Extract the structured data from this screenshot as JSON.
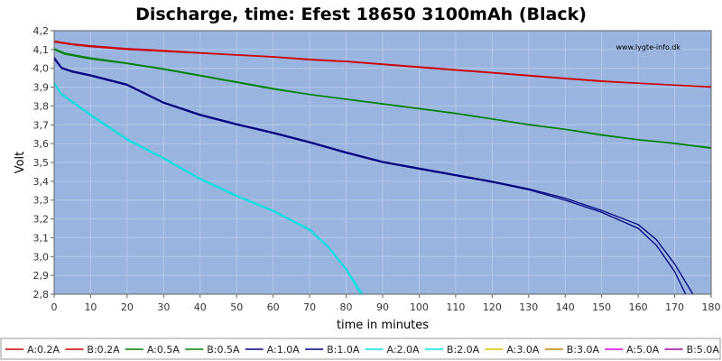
{
  "chart_data": {
    "type": "line",
    "title": "Discharge, time: Efest 18650 3100mAh (Black)",
    "xlabel": "time in minutes",
    "ylabel": "Volt",
    "xlim": [
      0,
      180
    ],
    "ylim": [
      2.8,
      4.2
    ],
    "x_ticks": [
      "0",
      "10",
      "20",
      "30",
      "40",
      "50",
      "60",
      "70",
      "80",
      "90",
      "100",
      "110",
      "120",
      "130",
      "140",
      "150",
      "160",
      "170",
      "180"
    ],
    "y_ticks": [
      "2,8",
      "2,9",
      "3,0",
      "3,1",
      "3,2",
      "3,3",
      "3,4",
      "3,5",
      "3,6",
      "3,7",
      "3,8",
      "3,9",
      "4,0",
      "4,1",
      "4,2"
    ],
    "grid": true,
    "background_color": "#98b4df",
    "watermark": "www.lygte-info.dk",
    "legend_position": "bottom",
    "series": [
      {
        "name": "A:0.2A",
        "color": "#cc0000",
        "points": [
          [
            0,
            4.14
          ],
          [
            5,
            4.125
          ],
          [
            10,
            4.115
          ],
          [
            20,
            4.1
          ],
          [
            30,
            4.09
          ],
          [
            40,
            4.08
          ],
          [
            50,
            4.07
          ],
          [
            60,
            4.06
          ],
          [
            70,
            4.045
          ],
          [
            80,
            4.035
          ],
          [
            90,
            4.02
          ],
          [
            100,
            4.005
          ],
          [
            110,
            3.99
          ],
          [
            120,
            3.975
          ],
          [
            130,
            3.96
          ],
          [
            140,
            3.945
          ],
          [
            150,
            3.93
          ],
          [
            160,
            3.92
          ],
          [
            170,
            3.91
          ],
          [
            180,
            3.9
          ]
        ]
      },
      {
        "name": "B:0.2A",
        "color": "#cc0000",
        "points": [
          [
            0,
            4.145
          ],
          [
            5,
            4.13
          ],
          [
            10,
            4.12
          ],
          [
            20,
            4.105
          ],
          [
            30,
            4.095
          ],
          [
            40,
            4.083
          ],
          [
            50,
            4.072
          ],
          [
            60,
            4.062
          ],
          [
            70,
            4.048
          ],
          [
            80,
            4.038
          ],
          [
            90,
            4.023
          ],
          [
            100,
            4.008
          ],
          [
            110,
            3.993
          ],
          [
            120,
            3.978
          ],
          [
            130,
            3.963
          ],
          [
            140,
            3.948
          ],
          [
            150,
            3.933
          ],
          [
            160,
            3.922
          ],
          [
            170,
            3.912
          ],
          [
            180,
            3.902
          ]
        ]
      },
      {
        "name": "A:0.5A",
        "color": "#008000",
        "points": [
          [
            0,
            4.1
          ],
          [
            3,
            4.075
          ],
          [
            10,
            4.05
          ],
          [
            20,
            4.025
          ],
          [
            30,
            3.995
          ],
          [
            40,
            3.96
          ],
          [
            50,
            3.925
          ],
          [
            60,
            3.89
          ],
          [
            70,
            3.86
          ],
          [
            80,
            3.835
          ],
          [
            90,
            3.81
          ],
          [
            100,
            3.785
          ],
          [
            110,
            3.76
          ],
          [
            120,
            3.73
          ],
          [
            130,
            3.7
          ],
          [
            140,
            3.675
          ],
          [
            150,
            3.645
          ],
          [
            160,
            3.62
          ],
          [
            170,
            3.6
          ],
          [
            180,
            3.575
          ]
        ]
      },
      {
        "name": "B:0.5A",
        "color": "#008000",
        "points": [
          [
            0,
            4.105
          ],
          [
            3,
            4.08
          ],
          [
            10,
            4.055
          ],
          [
            20,
            4.028
          ],
          [
            30,
            3.998
          ],
          [
            40,
            3.963
          ],
          [
            50,
            3.928
          ],
          [
            60,
            3.893
          ],
          [
            70,
            3.862
          ],
          [
            80,
            3.837
          ],
          [
            90,
            3.812
          ],
          [
            100,
            3.787
          ],
          [
            110,
            3.762
          ],
          [
            120,
            3.732
          ],
          [
            130,
            3.702
          ],
          [
            140,
            3.677
          ],
          [
            150,
            3.647
          ],
          [
            160,
            3.622
          ],
          [
            170,
            3.602
          ],
          [
            180,
            3.578
          ]
        ]
      },
      {
        "name": "A:1.0A",
        "color": "#000080",
        "points": [
          [
            0,
            4.05
          ],
          [
            2,
            4.0
          ],
          [
            5,
            3.98
          ],
          [
            10,
            3.96
          ],
          [
            20,
            3.91
          ],
          [
            30,
            3.815
          ],
          [
            40,
            3.75
          ],
          [
            50,
            3.7
          ],
          [
            60,
            3.655
          ],
          [
            70,
            3.605
          ],
          [
            80,
            3.55
          ],
          [
            90,
            3.5
          ],
          [
            100,
            3.465
          ],
          [
            110,
            3.43
          ],
          [
            120,
            3.395
          ],
          [
            130,
            3.355
          ],
          [
            140,
            3.3
          ],
          [
            150,
            3.235
          ],
          [
            160,
            3.15
          ],
          [
            165,
            3.06
          ],
          [
            170,
            2.92
          ],
          [
            173,
            2.8
          ]
        ]
      },
      {
        "name": "B:1.0A",
        "color": "#000080",
        "points": [
          [
            0,
            4.06
          ],
          [
            2,
            4.005
          ],
          [
            5,
            3.985
          ],
          [
            10,
            3.965
          ],
          [
            20,
            3.915
          ],
          [
            30,
            3.82
          ],
          [
            40,
            3.755
          ],
          [
            50,
            3.705
          ],
          [
            60,
            3.66
          ],
          [
            70,
            3.61
          ],
          [
            80,
            3.555
          ],
          [
            90,
            3.505
          ],
          [
            100,
            3.47
          ],
          [
            110,
            3.435
          ],
          [
            120,
            3.4
          ],
          [
            130,
            3.36
          ],
          [
            140,
            3.31
          ],
          [
            150,
            3.245
          ],
          [
            160,
            3.17
          ],
          [
            165,
            3.09
          ],
          [
            170,
            2.96
          ],
          [
            175,
            2.8
          ]
        ]
      },
      {
        "name": "A:2.0A",
        "color": "#00e0e0",
        "points": [
          [
            0,
            3.92
          ],
          [
            2,
            3.86
          ],
          [
            5,
            3.82
          ],
          [
            10,
            3.75
          ],
          [
            20,
            3.62
          ],
          [
            30,
            3.52
          ],
          [
            40,
            3.41
          ],
          [
            50,
            3.32
          ],
          [
            60,
            3.24
          ],
          [
            70,
            3.14
          ],
          [
            75,
            3.05
          ],
          [
            80,
            2.93
          ],
          [
            84,
            2.8
          ]
        ]
      },
      {
        "name": "B:2.0A",
        "color": "#00e0e0",
        "points": [
          [
            0,
            3.925
          ],
          [
            2,
            3.865
          ],
          [
            5,
            3.825
          ],
          [
            10,
            3.755
          ],
          [
            20,
            3.625
          ],
          [
            30,
            3.525
          ],
          [
            40,
            3.415
          ],
          [
            50,
            3.325
          ],
          [
            60,
            3.245
          ],
          [
            70,
            3.145
          ],
          [
            75,
            3.055
          ],
          [
            80,
            2.935
          ],
          [
            84.5,
            2.8
          ]
        ]
      },
      {
        "name": "A:3.0A",
        "color": "#e0c000",
        "points": []
      },
      {
        "name": "B:3.0A",
        "color": "#c08000",
        "points": []
      },
      {
        "name": "A:5.0A",
        "color": "#e000e0",
        "points": []
      },
      {
        "name": "B:5.0A",
        "color": "#a000a0",
        "points": []
      }
    ]
  }
}
